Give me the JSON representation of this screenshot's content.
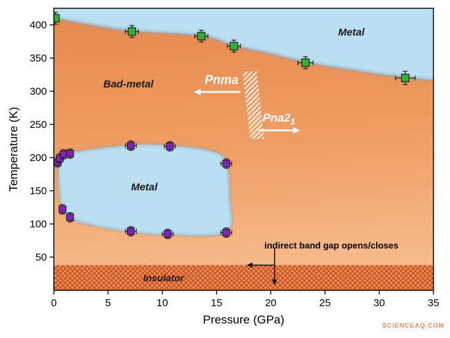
{
  "watermark": "SCIENCEAQ.COM",
  "chart_data": {
    "type": "scatter",
    "title": "",
    "xlabel": "Pressure (GPa)",
    "ylabel": "Temperature (K)",
    "xlim": [
      0,
      35
    ],
    "ylim": [
      0,
      425
    ],
    "xticks": [
      0,
      5,
      10,
      15,
      20,
      25,
      30,
      35
    ],
    "yticks": [
      50,
      100,
      150,
      200,
      250,
      300,
      350,
      400
    ],
    "grid": false,
    "legend": "none",
    "colors": {
      "bad_metal_top": "#e5874d",
      "bad_metal_mid": "#efa066",
      "bad_metal_bottom": "#f6bd90",
      "metal_blue": "#b9dff1",
      "boundary_fuzz": "#94a7b5",
      "green_marker": "#2db52d",
      "purple_marker": "#8224b8",
      "insulator_bg": "#ee9058",
      "insulator_hatch": "#c44d20",
      "annotation_black": "#000000",
      "annotation_white": "#ffffff"
    },
    "labels": {
      "metal_top": "Metal",
      "bad_metal": "Bad-metal",
      "metal_pocket": "Metal",
      "insulator": "Insulator",
      "pnma": "Pnma",
      "pna21_base": "Pna2",
      "pna21_sub": "1",
      "band_gap_note": "indirect band gap opens/closes"
    },
    "series": [
      {
        "name": "high-temperature metal / bad-metal boundary",
        "marker": "square",
        "color": "#2db52d",
        "points": [
          [
            0.15,
            410
          ],
          [
            7.2,
            390
          ],
          [
            13.6,
            383
          ],
          [
            16.6,
            368
          ],
          [
            23.2,
            343
          ],
          [
            32.4,
            320
          ]
        ],
        "xerr": [
          0.3,
          0.6,
          0.6,
          0.6,
          0.7,
          0.9
        ],
        "yerr": [
          9,
          9,
          9,
          9,
          9,
          10
        ]
      },
      {
        "name": "low-temperature metal pocket boundary",
        "marker": "square",
        "color": "#8224b8",
        "points": [
          [
            0.35,
            193
          ],
          [
            0.55,
            199
          ],
          [
            0.9,
            205
          ],
          [
            1.5,
            206
          ],
          [
            7.1,
            218
          ],
          [
            10.7,
            217
          ],
          [
            15.9,
            191
          ],
          [
            0.8,
            122
          ],
          [
            1.5,
            110
          ],
          [
            7.1,
            89
          ],
          [
            10.5,
            85
          ],
          [
            15.9,
            87
          ]
        ],
        "xerr": [
          0.15,
          0.2,
          0.25,
          0.3,
          0.5,
          0.5,
          0.5,
          0.25,
          0.3,
          0.5,
          0.5,
          0.5
        ],
        "yerr": [
          7,
          7,
          7,
          7,
          7,
          7,
          7,
          7,
          7,
          7,
          7,
          7
        ]
      }
    ],
    "regions": {
      "metal_top_boundary": [
        [
          0,
          411
        ],
        [
          3.5,
          400
        ],
        [
          7.2,
          391
        ],
        [
          13.6,
          384
        ],
        [
          16.6,
          369
        ],
        [
          20,
          357
        ],
        [
          23.2,
          344
        ],
        [
          28,
          331
        ],
        [
          32.4,
          321
        ],
        [
          35,
          317
        ]
      ],
      "metal_pocket_outline": [
        [
          0.5,
          197
        ],
        [
          1.0,
          206
        ],
        [
          1.6,
          208
        ],
        [
          7.1,
          219
        ],
        [
          10.7,
          218
        ],
        [
          14.5,
          210
        ],
        [
          15.9,
          192
        ],
        [
          16.2,
          140
        ],
        [
          15.9,
          88
        ],
        [
          10.5,
          84
        ],
        [
          7.1,
          88
        ],
        [
          3.0,
          100
        ],
        [
          1.5,
          109
        ],
        [
          0.8,
          121
        ],
        [
          0.45,
          160
        ]
      ],
      "insulator_top_K": 38,
      "structural_stripe": [
        [
          17.4,
          330
        ],
        [
          18.7,
          330
        ],
        [
          19.4,
          228
        ],
        [
          18.1,
          228
        ]
      ]
    },
    "annotations": {
      "pnma_arrow": {
        "from": [
          17.2,
          299
        ],
        "to": [
          12.9,
          299
        ]
      },
      "pna21_arrow": {
        "from": [
          18.9,
          241
        ],
        "to": [
          22.7,
          241
        ]
      },
      "bandgap_vline": {
        "from": [
          20.35,
          64
        ],
        "to": [
          20.35,
          8
        ]
      },
      "bandgap_hline": {
        "from": [
          20.35,
          38
        ],
        "to": [
          17.8,
          38
        ]
      }
    }
  }
}
